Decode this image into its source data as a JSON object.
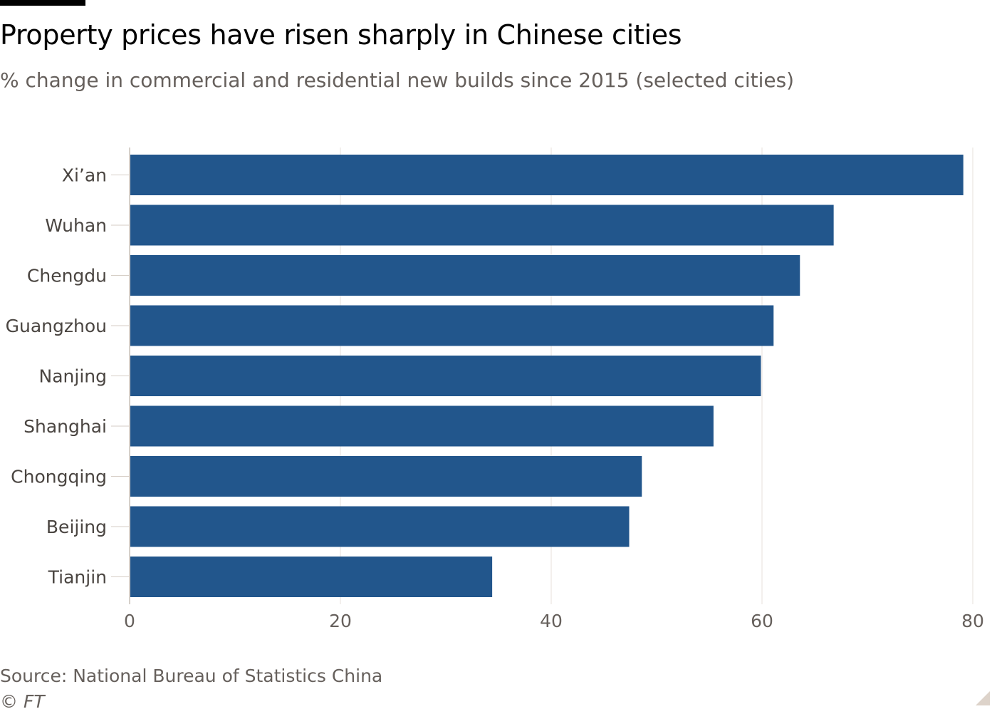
{
  "header": {
    "title": "Property prices have risen sharply in Chinese cities",
    "subtitle": "% change in commercial and residential new builds since 2015 (selected cities)"
  },
  "footer": {
    "source": "Source: National Bureau of Statistics China",
    "copyright": "© FT"
  },
  "colors": {
    "bar": "#22568c",
    "grid": "#e7e1db",
    "axis_text": "#66605c",
    "title": "#000000"
  },
  "chart_data": {
    "type": "bar",
    "orientation": "horizontal",
    "title": "Property prices have risen sharply in Chinese cities",
    "subtitle": "% change in commercial and residential new builds since 2015 (selected cities)",
    "xlabel": "",
    "ylabel": "",
    "categories": [
      "Xi’an",
      "Wuhan",
      "Chengdu",
      "Guangzhou",
      "Nanjing",
      "Shanghai",
      "Chongqing",
      "Beijing",
      "Tianjin"
    ],
    "values": [
      79.1,
      66.8,
      63.6,
      61.1,
      59.9,
      55.4,
      48.6,
      47.4,
      34.4
    ],
    "xlim": [
      0,
      80
    ],
    "xticks": [
      0,
      20,
      40,
      60,
      80
    ],
    "grid": "vertical",
    "legend": "none"
  }
}
